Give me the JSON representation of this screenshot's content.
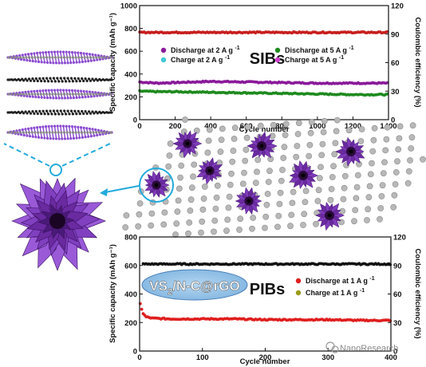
{
  "chart_data": [
    {
      "type": "scatter",
      "label": "SIBs",
      "xlabel": "Cycle number",
      "ylabel": "Specific capacity (mAh g⁻¹)",
      "y2label": "Coulombic efficiency (%)",
      "xlim": [
        0,
        1400
      ],
      "ylim": [
        0,
        1000
      ],
      "y2lim": [
        0,
        120
      ],
      "xticks": [
        0,
        200,
        400,
        600,
        800,
        1000,
        1200,
        1400
      ],
      "yticks": [
        0,
        200,
        400,
        600,
        800,
        1000
      ],
      "y2ticks": [
        0,
        30,
        60,
        90,
        120
      ],
      "legend": [
        {
          "text": "Discharge at 2 A g",
          "sup": "-1",
          "color": "#8a1a9a"
        },
        {
          "text": "Discharge at 5 A g",
          "sup": "-1",
          "color": "#1e8a1e"
        },
        {
          "text": "Charge at 2 A g",
          "sup": "-1",
          "color": "#3ec8d8"
        },
        {
          "text": "Charge at 5 A g",
          "sup": "-1",
          "color": "#d040d0"
        }
      ],
      "series": [
        {
          "name": "Discharge at 2 A g-1",
          "color": "#8a1a9a",
          "axis": "left",
          "x": [
            0,
            100,
            200,
            400,
            600,
            800,
            1000,
            1200,
            1400
          ],
          "y": [
            330,
            320,
            325,
            335,
            330,
            325,
            320,
            320,
            320
          ]
        },
        {
          "name": "Discharge at 5 A g-1",
          "color": "#1e8a1e",
          "axis": "left",
          "x": [
            0,
            100,
            200,
            400,
            600,
            800,
            1000,
            1200,
            1400
          ],
          "y": [
            250,
            245,
            245,
            240,
            235,
            230,
            225,
            220,
            220
          ]
        },
        {
          "name": "Coulombic efficiency",
          "color": "#c81e1e",
          "axis": "left",
          "x": [
            0,
            200,
            400,
            600,
            800,
            1000,
            1200,
            1400
          ],
          "y": [
            765,
            765,
            765,
            765,
            765,
            765,
            765,
            765
          ]
        }
      ]
    },
    {
      "type": "scatter",
      "label": "PIBs",
      "xlabel": "Cycle number",
      "ylabel": "Specific capacity (mAh g⁻¹)",
      "y2label": "Coulombic efficiency (%)",
      "xlim": [
        0,
        400
      ],
      "ylim": [
        0,
        800
      ],
      "y2lim": [
        0,
        120
      ],
      "xticks": [
        0,
        100,
        200,
        300,
        400
      ],
      "yticks": [
        0,
        200,
        400,
        600,
        800
      ],
      "y2ticks": [
        0,
        30,
        60,
        90,
        120
      ],
      "legend": [
        {
          "text": "Discharge at 1 A g",
          "sup": "-1",
          "color": "#e01e1e"
        },
        {
          "text": "Charge at 1 A g",
          "sup": "-1",
          "color": "#9a9a1a"
        }
      ],
      "series": [
        {
          "name": "Discharge at 1 A g-1",
          "color": "#e01e1e",
          "axis": "left",
          "x": [
            1,
            3,
            6,
            10,
            20,
            50,
            100,
            150,
            200,
            250,
            300,
            350,
            400
          ],
          "y": [
            330,
            300,
            260,
            240,
            230,
            225,
            225,
            225,
            220,
            220,
            220,
            215,
            215
          ]
        },
        {
          "name": "Coulombic efficiency",
          "color": "#111111",
          "axis": "left",
          "x": [
            5,
            20,
            50,
            100,
            200,
            300,
            400
          ],
          "y": [
            610,
            610,
            610,
            610,
            610,
            610,
            610
          ]
        }
      ]
    }
  ],
  "figure": {
    "material_label": "VS",
    "material_sub": "2",
    "material_suffix": "/N-C@rGO",
    "watermark": "NanoResearch",
    "watermark_icon": "wechat-icon"
  }
}
